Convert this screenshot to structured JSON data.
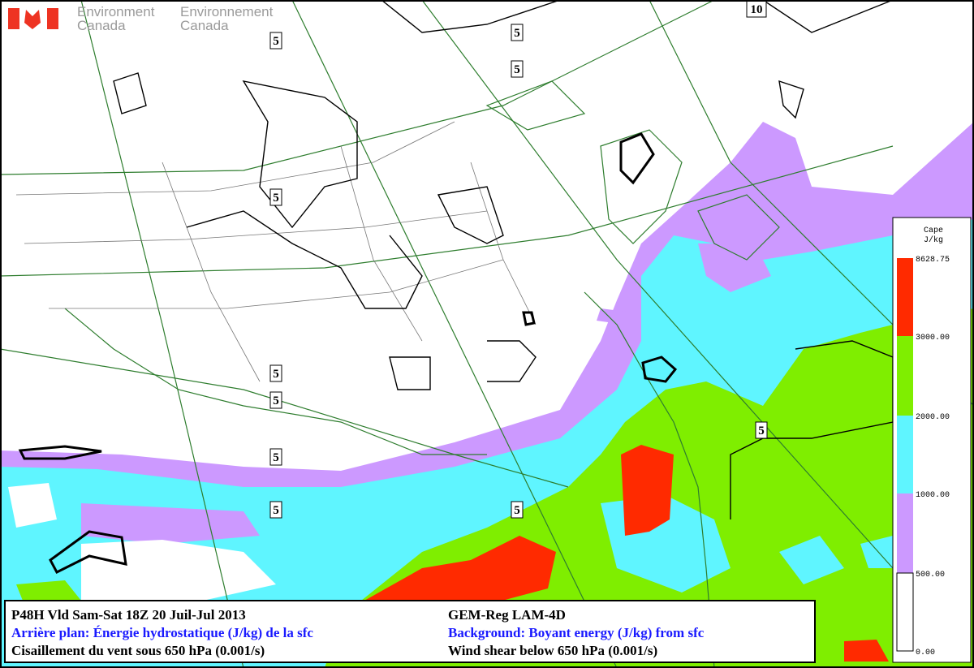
{
  "logo": {
    "en_line1": "Environment",
    "en_line2": "Canada",
    "fr_line1": "Environnement",
    "fr_line2": "Canada"
  },
  "contour_labels": [
    "10",
    "5",
    "5",
    "5",
    "5",
    "5",
    "5",
    "5",
    "5",
    "5",
    "5"
  ],
  "legend": {
    "title": "Cape",
    "unit": "J/kg",
    "levels": [
      "8628.75",
      "3000.00",
      "2000.00",
      "1000.00",
      "500.00",
      "0.00"
    ]
  },
  "info": {
    "valid": "P48H Vld Sam-Sat 18Z 20 Juil-Jul 2013",
    "model": "GEM-Reg LAM-4D",
    "background_fr": "Arrière plan: Énergie hydrostatique (J/kg) de la sfc",
    "background_en": "Background: Boyant energy (J/kg) from sfc",
    "shear_fr": "Cisaillement du vent sous 650 hPa (0.001/s)",
    "shear_en": "Wind shear below 650 hPa (0.001/s)"
  }
}
